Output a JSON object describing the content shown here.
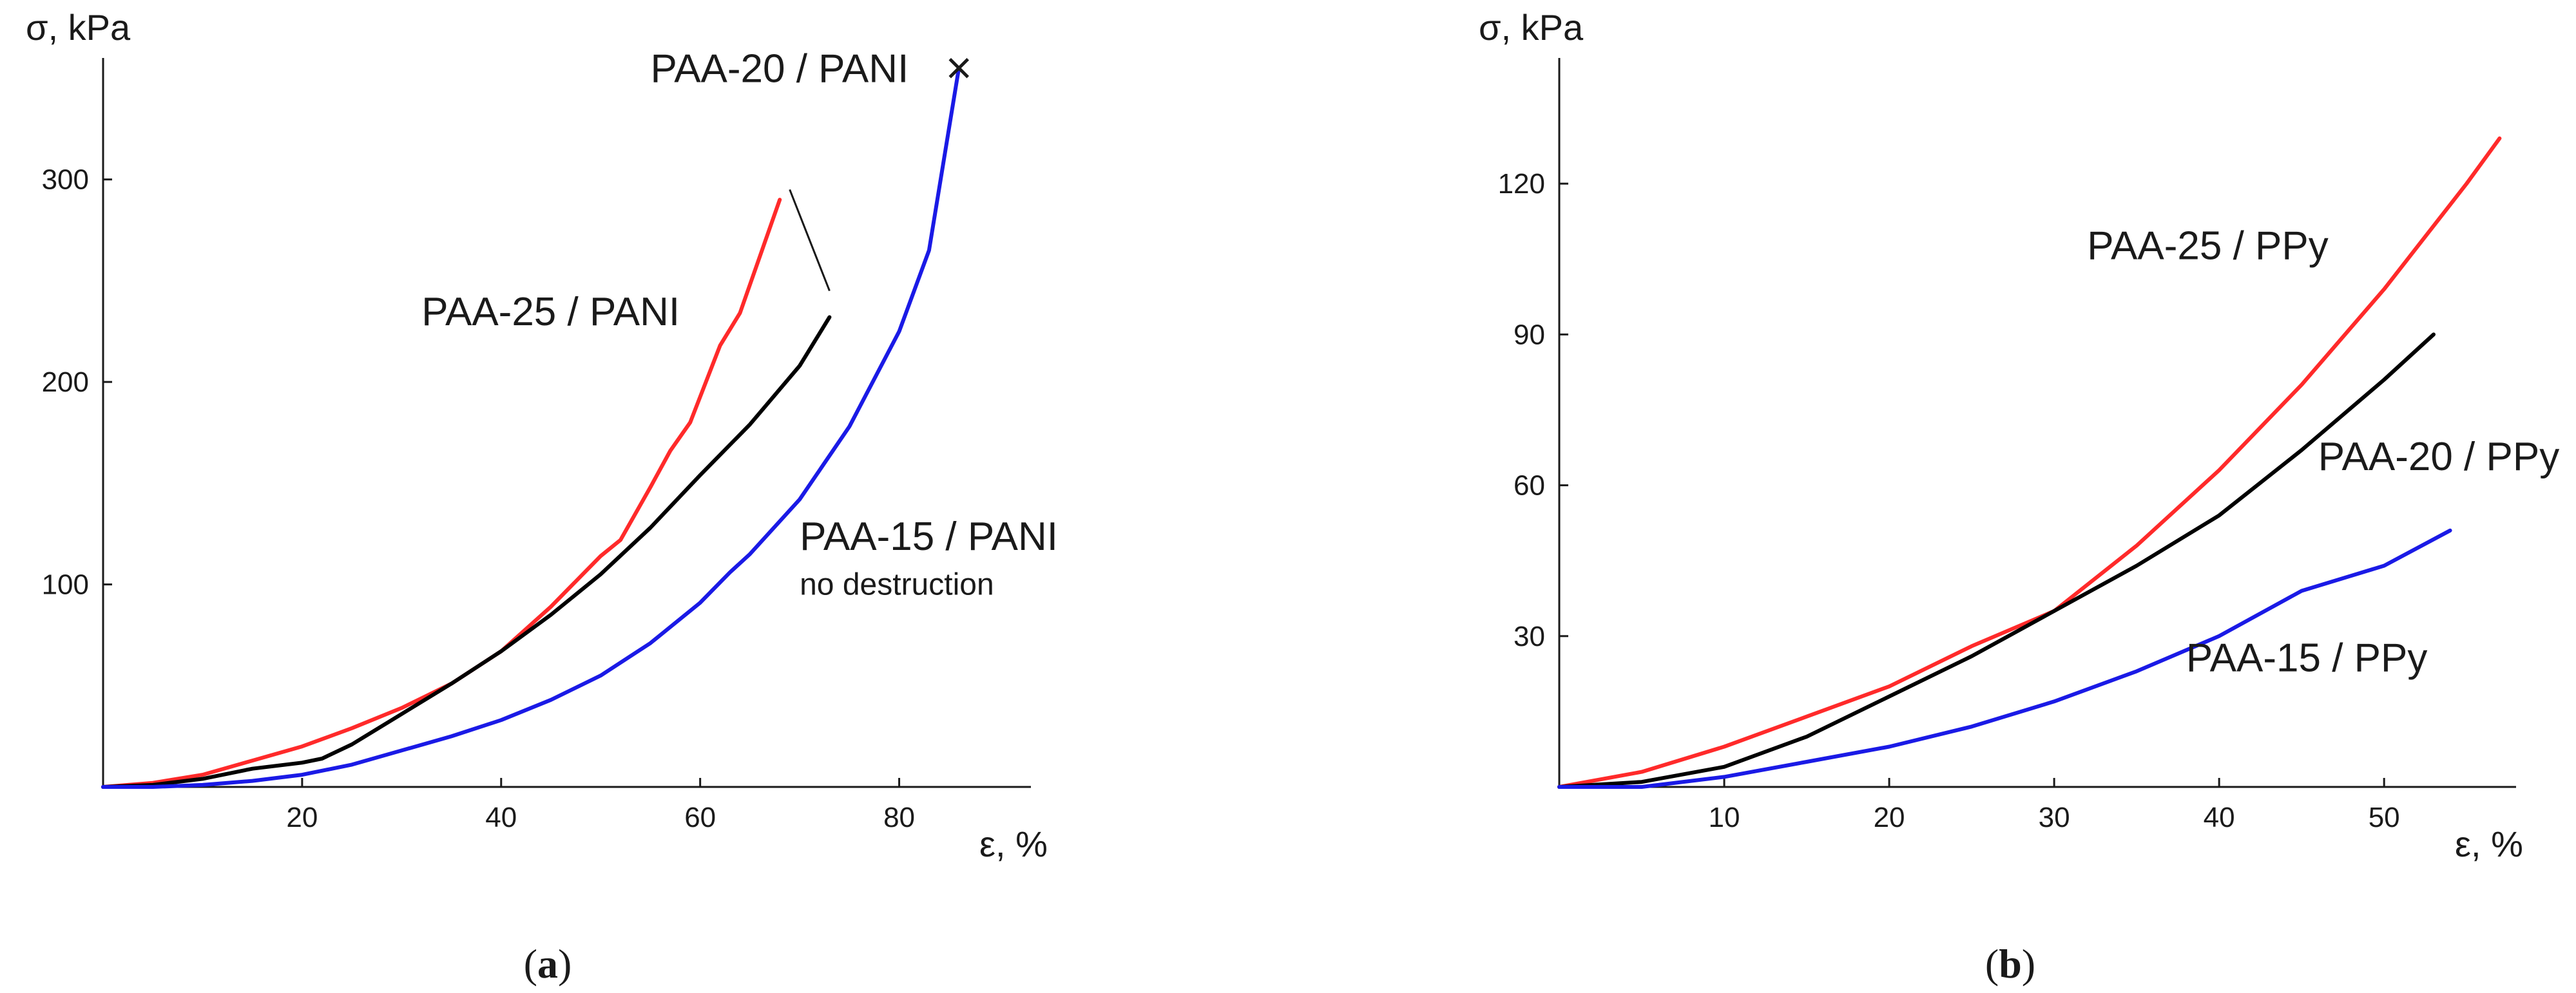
{
  "chart_data": [
    {
      "type": "line",
      "panel_label_open": "(",
      "panel_letter": "a",
      "panel_label_close": ")",
      "ylabel": "σ, kPa",
      "xlabel": "ε, %",
      "xlim": [
        0,
        90
      ],
      "ylim": [
        0,
        360
      ],
      "xticks": [
        20,
        40,
        60,
        80
      ],
      "yticks": [
        100,
        200,
        300
      ],
      "grid": false,
      "failure_marker": "x",
      "failure_point": [
        86,
        355
      ],
      "leader_from_label": "PAA-20 / PANI",
      "leader_points": [
        [
          69,
          295
        ],
        [
          73,
          245
        ]
      ],
      "series": [
        {
          "name": "PAA-25 / PANI",
          "color": "#ff2a2a",
          "label_at": [
            32,
            228
          ],
          "x": [
            0,
            5,
            10,
            15,
            20,
            25,
            30,
            35,
            40,
            45,
            50,
            52,
            55,
            57,
            59,
            62,
            64,
            66,
            68
          ],
          "y": [
            0,
            2,
            6,
            13,
            20,
            29,
            39,
            51,
            67,
            89,
            114,
            122,
            148,
            166,
            180,
            218,
            234,
            262,
            290
          ]
        },
        {
          "name": "PAA-20 / PANI",
          "color": "#000000",
          "label_at": [
            55,
            348
          ],
          "x": [
            0,
            5,
            10,
            15,
            20,
            22,
            25,
            30,
            35,
            40,
            45,
            50,
            55,
            60,
            65,
            70,
            73
          ],
          "y": [
            0,
            1,
            4,
            9,
            12,
            14,
            21,
            36,
            51,
            67,
            85,
            105,
            128,
            154,
            179,
            208,
            232
          ]
        },
        {
          "name": "PAA-15 / PANI",
          "color": "#1a1ae6",
          "label_at": [
            70,
            117
          ],
          "x": [
            0,
            5,
            10,
            15,
            20,
            25,
            30,
            35,
            40,
            45,
            50,
            55,
            60,
            63,
            65,
            70,
            75,
            80,
            83,
            86
          ],
          "y": [
            0,
            0,
            1,
            3,
            6,
            11,
            18,
            25,
            33,
            43,
            55,
            71,
            91,
            106,
            115,
            142,
            178,
            225,
            265,
            355
          ],
          "annotation": "no destruction",
          "annotation_at": [
            70,
            95
          ]
        }
      ]
    },
    {
      "type": "line",
      "panel_label_open": "(",
      "panel_letter": "b",
      "panel_label_close": ")",
      "ylabel": "σ, kPa",
      "xlabel": "ε, %",
      "xlim": [
        0,
        58
      ],
      "ylim": [
        0,
        145
      ],
      "xticks": [
        10,
        20,
        30,
        40,
        50
      ],
      "yticks": [
        30,
        60,
        90,
        120
      ],
      "grid": false,
      "series": [
        {
          "name": "PAA-25 / PPy",
          "color": "#ff2a2a",
          "label_at": [
            32,
            105
          ],
          "x": [
            0,
            5,
            10,
            15,
            20,
            25,
            30,
            35,
            40,
            45,
            50,
            55,
            57
          ],
          "y": [
            0,
            3,
            8,
            14,
            20,
            28,
            35,
            48,
            63,
            80,
            99,
            120,
            129
          ]
        },
        {
          "name": "PAA-20 / PPy",
          "color": "#000000",
          "label_at": [
            46,
            63
          ],
          "x": [
            0,
            5,
            10,
            15,
            20,
            25,
            30,
            35,
            40,
            45,
            50,
            53
          ],
          "y": [
            0,
            1,
            4,
            10,
            18,
            26,
            35,
            44,
            54,
            67,
            81,
            90
          ]
        },
        {
          "name": "PAA-15 / PPy",
          "color": "#1a1ae6",
          "label_at": [
            38,
            23
          ],
          "x": [
            0,
            5,
            10,
            15,
            20,
            25,
            30,
            35,
            40,
            45,
            50,
            54
          ],
          "y": [
            0,
            0,
            2,
            5,
            8,
            12,
            17,
            23,
            30,
            39,
            44,
            51
          ]
        }
      ]
    }
  ]
}
